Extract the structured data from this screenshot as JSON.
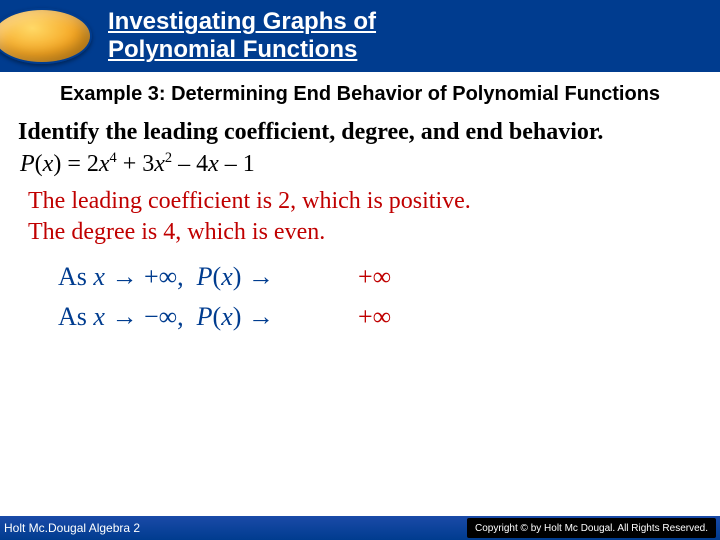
{
  "header": {
    "title_line1": "Investigating Graphs of",
    "title_line2": "Polynomial Functions"
  },
  "example": {
    "label": "Example 3: Determining End Behavior of Polynomial Functions"
  },
  "instruction": "Identify the leading coefficient, degree, and end behavior.",
  "polynomial": {
    "func_name": "P",
    "var": "x",
    "terms_display": "2x⁴ + 3x² – 4x – 1",
    "leading_coefficient": 2,
    "degree": 4
  },
  "analysis": {
    "line1": "The leading coefficient is 2, which is positive.",
    "line2": "The degree is 4, which is even."
  },
  "limits": {
    "row1_lhs": "As x → +∞,  P(x) →",
    "row1_rhs": "+∞",
    "row2_lhs": "As x → −∞,  P(x) →",
    "row2_rhs": "+∞"
  },
  "footer": {
    "left": "Holt Mc.Dougal Algebra 2",
    "right": "Copyright © by Holt Mc Dougal. All Rights Reserved."
  },
  "colors": {
    "header_bg": "#003c8f",
    "accent_red": "#c00000",
    "ellipse_gradient": [
      "#ffd966",
      "#f5a623",
      "#d38a15"
    ],
    "page_bg": "#ffffff"
  }
}
